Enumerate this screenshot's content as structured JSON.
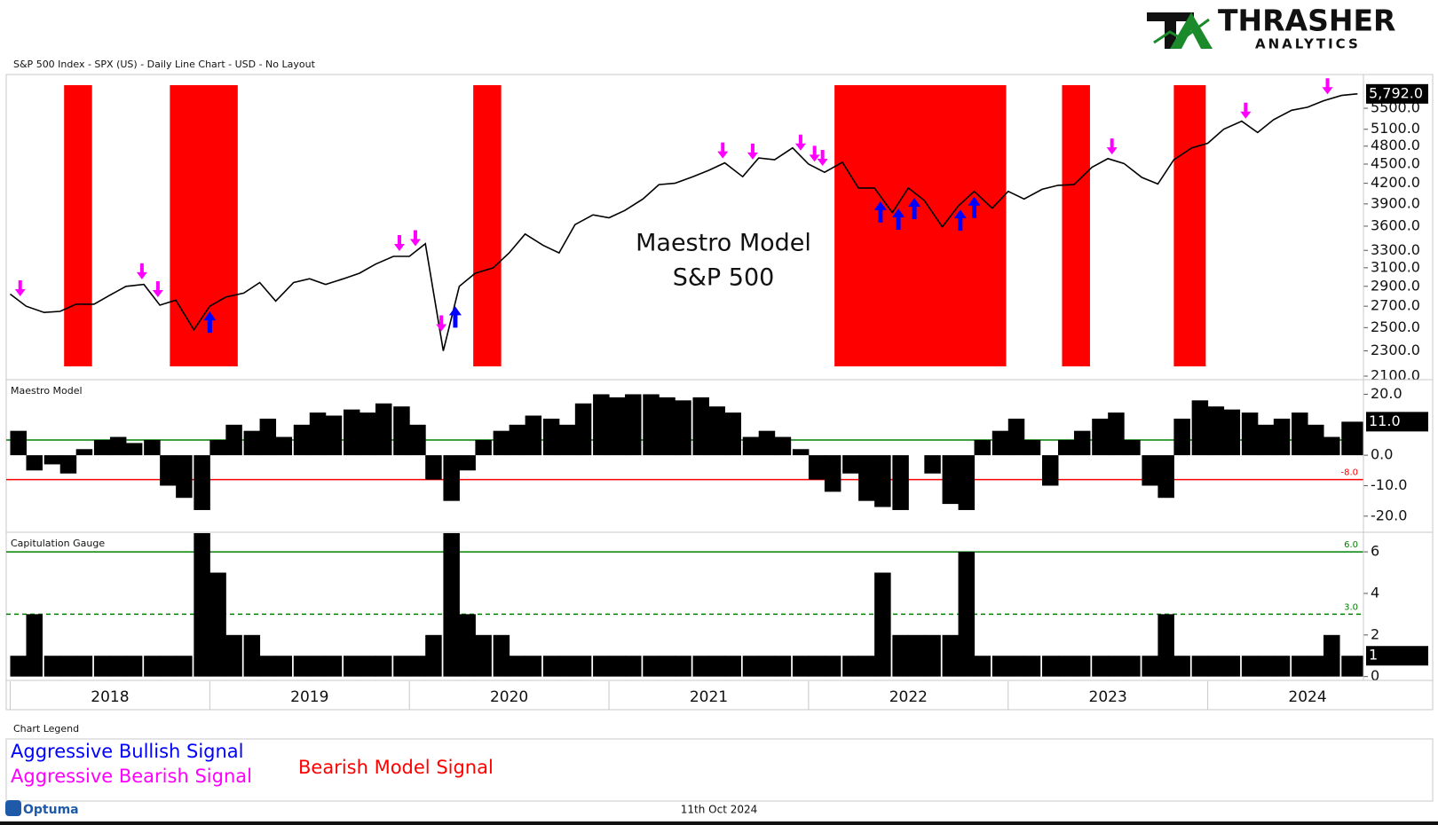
{
  "header": {
    "logo_name": "THRASHER",
    "logo_tagline": "ANALYTICS",
    "subtitle": "S&P 500 Index - SPX (US) - Daily Line Chart - USD - No Layout"
  },
  "legend_title": "Chart Legend",
  "footer": {
    "brand": "Optuma",
    "date": "11th Oct 2024"
  },
  "chart_data": [
    {
      "type": "line",
      "color": "#000000",
      "log": true,
      "annotation": [
        "Maestro Model",
        "S&P 500"
      ],
      "x": [
        2018.0,
        2018.08,
        2018.17,
        2018.25,
        2018.33,
        2018.42,
        2018.5,
        2018.58,
        2018.67,
        2018.75,
        2018.83,
        2018.92,
        2019.0,
        2019.08,
        2019.17,
        2019.25,
        2019.33,
        2019.42,
        2019.5,
        2019.58,
        2019.67,
        2019.75,
        2019.83,
        2019.92,
        2020.0,
        2020.08,
        2020.17,
        2020.25,
        2020.33,
        2020.42,
        2020.5,
        2020.58,
        2020.67,
        2020.75,
        2020.83,
        2020.92,
        2021.0,
        2021.08,
        2021.17,
        2021.25,
        2021.33,
        2021.42,
        2021.5,
        2021.58,
        2021.67,
        2021.75,
        2021.83,
        2021.92,
        2022.0,
        2022.08,
        2022.17,
        2022.25,
        2022.33,
        2022.42,
        2022.5,
        2022.58,
        2022.67,
        2022.75,
        2022.83,
        2022.92,
        2023.0,
        2023.08,
        2023.17,
        2023.25,
        2023.33,
        2023.42,
        2023.5,
        2023.58,
        2023.67,
        2023.75,
        2023.83,
        2023.92,
        2024.0,
        2024.08,
        2024.17,
        2024.25,
        2024.33,
        2024.42,
        2024.5,
        2024.58,
        2024.67,
        2024.75
      ],
      "values": [
        2820,
        2700,
        2640,
        2650,
        2720,
        2720,
        2810,
        2900,
        2920,
        2710,
        2760,
        2480,
        2700,
        2790,
        2830,
        2940,
        2750,
        2940,
        2980,
        2920,
        2980,
        3040,
        3140,
        3230,
        3230,
        3380,
        2300,
        2900,
        3040,
        3100,
        3270,
        3500,
        3360,
        3270,
        3620,
        3750,
        3710,
        3810,
        3970,
        4180,
        4200,
        4300,
        4400,
        4520,
        4300,
        4600,
        4570,
        4770,
        4500,
        4370,
        4530,
        4130,
        4130,
        3780,
        4130,
        3950,
        3590,
        3870,
        4080,
        3840,
        4080,
        3970,
        4110,
        4170,
        4180,
        4450,
        4590,
        4510,
        4290,
        4190,
        4570,
        4770,
        4850,
        5100,
        5250,
        5040,
        5280,
        5460,
        5520,
        5650,
        5760,
        5792
      ],
      "xlim": [
        2017.98,
        2024.78
      ],
      "ylim": [
        2080,
        6170
      ],
      "yticks": [
        {
          "value": 2100,
          "label": "2100.0"
        },
        {
          "value": 2300,
          "label": "2300.0"
        },
        {
          "value": 2500,
          "label": "2500.0"
        },
        {
          "value": 2700,
          "label": "2700.0"
        },
        {
          "value": 2900,
          "label": "2900.0"
        },
        {
          "value": 3100,
          "label": "3100.0"
        },
        {
          "value": 3300,
          "label": "3300.0"
        },
        {
          "value": 3600,
          "label": "3600.0"
        },
        {
          "value": 3900,
          "label": "3900.0"
        },
        {
          "value": 4200,
          "label": "4200.0"
        },
        {
          "value": 4500,
          "label": "4500.0"
        },
        {
          "value": 4800,
          "label": "4800.0"
        },
        {
          "value": 5100,
          "label": "5100.0"
        },
        {
          "value": 5500,
          "label": "5500.0"
        }
      ],
      "last_label": {
        "value": 5792,
        "label": "5,792.0"
      },
      "bands": {
        "name": "Bearish Model Signal",
        "color": "#ff0000",
        "ranges": [
          [
            2018.27,
            2018.41
          ],
          [
            2018.8,
            2019.14
          ],
          [
            2020.32,
            2020.46
          ],
          [
            2022.13,
            2022.99
          ],
          [
            2023.27,
            2023.41
          ],
          [
            2023.83,
            2023.99
          ]
        ]
      },
      "signals": [
        {
          "name": "Aggressive Bullish Signal",
          "color": "#0000ff",
          "direction": "up",
          "x": [
            2019.0,
            2020.23,
            2022.36,
            2022.45,
            2022.53,
            2022.76,
            2022.83
          ]
        },
        {
          "name": "Aggressive Bearish Signal",
          "color": "#ff00ff",
          "direction": "down",
          "x": [
            2018.05,
            2018.66,
            2018.74,
            2019.95,
            2020.03,
            2020.16,
            2021.57,
            2021.72,
            2021.96,
            2022.03,
            2022.07,
            2023.52,
            2024.19,
            2024.6
          ]
        }
      ]
    },
    {
      "type": "bar",
      "title": "Maestro Model",
      "color": "#000000",
      "x": [
        2018.0,
        2018.08,
        2018.17,
        2018.25,
        2018.33,
        2018.42,
        2018.5,
        2018.58,
        2018.67,
        2018.75,
        2018.83,
        2018.92,
        2019.0,
        2019.08,
        2019.17,
        2019.25,
        2019.33,
        2019.42,
        2019.5,
        2019.58,
        2019.67,
        2019.75,
        2019.83,
        2019.92,
        2020.0,
        2020.08,
        2020.17,
        2020.25,
        2020.33,
        2020.42,
        2020.5,
        2020.58,
        2020.67,
        2020.75,
        2020.83,
        2020.92,
        2021.0,
        2021.08,
        2021.17,
        2021.25,
        2021.33,
        2021.42,
        2021.5,
        2021.58,
        2021.67,
        2021.75,
        2021.83,
        2021.92,
        2022.0,
        2022.08,
        2022.17,
        2022.25,
        2022.33,
        2022.42,
        2022.5,
        2022.58,
        2022.67,
        2022.75,
        2022.83,
        2022.92,
        2023.0,
        2023.08,
        2023.17,
        2023.25,
        2023.33,
        2023.42,
        2023.5,
        2023.58,
        2023.67,
        2023.75,
        2023.83,
        2023.92,
        2024.0,
        2024.08,
        2024.17,
        2024.25,
        2024.33,
        2024.42,
        2024.5,
        2024.58,
        2024.67,
        2024.75
      ],
      "values": [
        8,
        -5,
        -3,
        -6,
        2,
        5,
        6,
        4,
        5,
        -10,
        -14,
        -18,
        5,
        10,
        8,
        12,
        6,
        10,
        14,
        13,
        15,
        14,
        17,
        16,
        10,
        -8,
        -15,
        -5,
        5,
        8,
        10,
        13,
        12,
        10,
        17,
        20,
        19,
        20,
        20,
        19,
        18,
        19,
        16,
        14,
        6,
        8,
        6,
        2,
        -8,
        -12,
        -6,
        -15,
        -17,
        -18,
        0,
        -6,
        -16,
        -18,
        5,
        8,
        12,
        5,
        -10,
        5,
        8,
        12,
        14,
        5,
        -10,
        -14,
        12,
        18,
        16,
        15,
        14,
        10,
        12,
        14,
        10,
        6,
        11,
        11
      ],
      "xlim": [
        2017.98,
        2024.78
      ],
      "ylim": [
        -25,
        24.5
      ],
      "yticks": [
        {
          "value": 20,
          "label": "20.0"
        },
        {
          "value": 0,
          "label": "0.0"
        },
        {
          "value": -10,
          "label": "-10.0"
        },
        {
          "value": -20,
          "label": "-20.0"
        }
      ],
      "hlines": [
        {
          "value": 5,
          "color": "#008000"
        },
        {
          "value": -8,
          "color": "#ff0000",
          "label": "-8.0"
        }
      ],
      "last_label": {
        "value": 11,
        "label": "11.0"
      }
    },
    {
      "type": "bar",
      "title": "Capitulation Gauge",
      "color": "#000000",
      "x": [
        2018.0,
        2018.08,
        2018.17,
        2018.25,
        2018.33,
        2018.42,
        2018.5,
        2018.58,
        2018.67,
        2018.75,
        2018.83,
        2018.92,
        2019.0,
        2019.08,
        2019.17,
        2019.25,
        2019.33,
        2019.42,
        2019.5,
        2019.58,
        2019.67,
        2019.75,
        2019.83,
        2019.92,
        2020.0,
        2020.08,
        2020.17,
        2020.25,
        2020.33,
        2020.42,
        2020.5,
        2020.58,
        2020.67,
        2020.75,
        2020.83,
        2020.92,
        2021.0,
        2021.08,
        2021.17,
        2021.25,
        2021.33,
        2021.42,
        2021.5,
        2021.58,
        2021.67,
        2021.75,
        2021.83,
        2021.92,
        2022.0,
        2022.08,
        2022.17,
        2022.25,
        2022.33,
        2022.42,
        2022.5,
        2022.58,
        2022.67,
        2022.75,
        2022.83,
        2022.92,
        2023.0,
        2023.08,
        2023.17,
        2023.25,
        2023.33,
        2023.42,
        2023.5,
        2023.58,
        2023.67,
        2023.75,
        2023.83,
        2023.92,
        2024.0,
        2024.08,
        2024.17,
        2024.25,
        2024.33,
        2024.42,
        2024.5,
        2024.58,
        2024.67,
        2024.75
      ],
      "values": [
        1,
        3,
        1,
        1,
        1,
        1,
        1,
        1,
        1,
        1,
        1,
        7,
        5,
        2,
        2,
        1,
        1,
        1,
        1,
        1,
        1,
        1,
        1,
        1,
        1,
        2,
        7,
        3,
        2,
        2,
        1,
        1,
        1,
        1,
        1,
        1,
        1,
        1,
        1,
        1,
        1,
        1,
        1,
        1,
        1,
        1,
        1,
        1,
        1,
        1,
        1,
        1,
        5,
        2,
        2,
        2,
        2,
        6,
        1,
        1,
        1,
        1,
        1,
        1,
        1,
        1,
        1,
        1,
        1,
        3,
        1,
        1,
        1,
        1,
        1,
        1,
        1,
        1,
        1,
        2,
        1,
        1
      ],
      "xlim": [
        2017.98,
        2024.78
      ],
      "ylim": [
        -0.1,
        6.9
      ],
      "yticks": [
        0,
        2,
        4,
        6
      ],
      "hlines": [
        {
          "value": 6,
          "color": "#008000",
          "label": "6.0",
          "dash": false
        },
        {
          "value": 3,
          "color": "#008000",
          "label": "3.0",
          "dash": true
        }
      ],
      "last_label": 1,
      "xticks": [
        {
          "value": 2018,
          "label": "2018"
        },
        {
          "value": 2019,
          "label": "2019"
        },
        {
          "value": 2020,
          "label": "2020"
        },
        {
          "value": 2021,
          "label": "2021"
        },
        {
          "value": 2022,
          "label": "2022"
        },
        {
          "value": 2023,
          "label": "2023"
        },
        {
          "value": 2024,
          "label": "2024"
        }
      ]
    }
  ]
}
